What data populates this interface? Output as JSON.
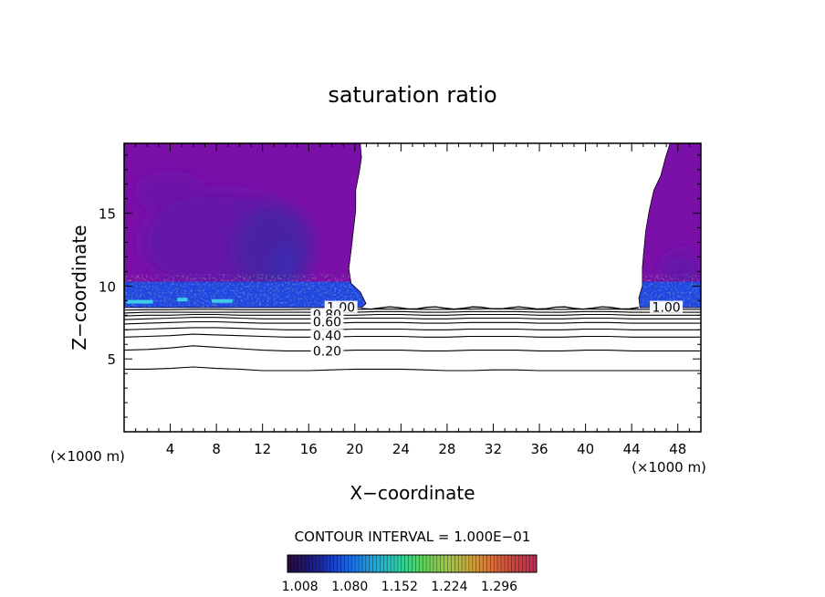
{
  "chart_data": {
    "type": "heatmap",
    "title": "saturation ratio",
    "xlabel": "X−coordinate",
    "ylabel": "Z−coordinate",
    "x_unit_label": "(×1000 m)",
    "y_unit_label": "(×1000 m)",
    "xlim": [
      0,
      50
    ],
    "ylim": [
      0,
      19.8
    ],
    "x_ticks": [
      4,
      8,
      12,
      16,
      20,
      24,
      28,
      32,
      36,
      40,
      44,
      48
    ],
    "y_ticks": [
      5,
      10,
      15
    ],
    "contour_interval_text": "CONTOUR INTERVAL = 1.000E−01",
    "contour_lines": [
      {
        "level": 0.1,
        "label": "",
        "z": [
          4.3,
          4.3,
          4.35,
          4.45,
          4.35,
          4.3,
          4.2,
          4.2,
          4.2,
          4.25,
          4.3,
          4.3,
          4.3,
          4.25,
          4.2,
          4.2,
          4.25,
          4.25,
          4.2,
          4.2,
          4.2,
          4.2,
          4.2,
          4.2,
          4.2,
          4.2
        ]
      },
      {
        "level": 0.2,
        "label": "0.20",
        "z": [
          5.6,
          5.65,
          5.75,
          5.9,
          5.8,
          5.7,
          5.6,
          5.55,
          5.55,
          5.55,
          5.6,
          5.6,
          5.6,
          5.55,
          5.55,
          5.6,
          5.6,
          5.6,
          5.55,
          5.55,
          5.6,
          5.6,
          5.55,
          5.55,
          5.55,
          5.55
        ]
      },
      {
        "level": 0.3,
        "label": "",
        "z": [
          6.5,
          6.55,
          6.6,
          6.7,
          6.65,
          6.6,
          6.55,
          6.5,
          6.5,
          6.5,
          6.55,
          6.55,
          6.55,
          6.5,
          6.5,
          6.55,
          6.55,
          6.55,
          6.5,
          6.5,
          6.55,
          6.55,
          6.5,
          6.5,
          6.5,
          6.5
        ]
      },
      {
        "level": 0.4,
        "label": "0.40",
        "z": [
          7.0,
          7.05,
          7.1,
          7.15,
          7.15,
          7.1,
          7.05,
          7.0,
          7.0,
          7.0,
          7.05,
          7.05,
          7.05,
          7.0,
          7.0,
          7.05,
          7.05,
          7.05,
          7.0,
          7.0,
          7.05,
          7.05,
          7.0,
          7.0,
          7.0,
          7.0
        ]
      },
      {
        "level": 0.5,
        "label": "",
        "z": [
          7.4,
          7.45,
          7.5,
          7.55,
          7.55,
          7.5,
          7.45,
          7.45,
          7.45,
          7.45,
          7.5,
          7.5,
          7.5,
          7.45,
          7.45,
          7.5,
          7.5,
          7.5,
          7.45,
          7.45,
          7.5,
          7.5,
          7.45,
          7.45,
          7.45,
          7.45
        ]
      },
      {
        "level": 0.6,
        "label": "0.60",
        "z": [
          7.7,
          7.75,
          7.8,
          7.85,
          7.85,
          7.8,
          7.75,
          7.75,
          7.75,
          7.75,
          7.8,
          7.8,
          7.8,
          7.75,
          7.75,
          7.8,
          7.8,
          7.8,
          7.75,
          7.75,
          7.8,
          7.8,
          7.75,
          7.75,
          7.75,
          7.75
        ]
      },
      {
        "level": 0.7,
        "label": "",
        "z": [
          7.95,
          8.0,
          8.0,
          8.05,
          8.05,
          8.0,
          8.0,
          8.0,
          8.0,
          8.0,
          8.0,
          8.05,
          8.05,
          8.0,
          8.0,
          8.05,
          8.05,
          8.05,
          8.0,
          8.0,
          8.05,
          8.05,
          8.0,
          8.0,
          8.0,
          8.0
        ]
      },
      {
        "level": 0.8,
        "label": "0.80",
        "z": [
          8.15,
          8.2,
          8.2,
          8.2,
          8.2,
          8.2,
          8.2,
          8.2,
          8.2,
          8.2,
          8.2,
          8.25,
          8.25,
          8.2,
          8.2,
          8.25,
          8.25,
          8.25,
          8.2,
          8.2,
          8.25,
          8.25,
          8.2,
          8.2,
          8.2,
          8.2
        ]
      },
      {
        "level": 0.9,
        "label": "",
        "z": [
          8.35,
          8.38,
          8.38,
          8.4,
          8.4,
          8.38,
          8.38,
          8.38,
          8.4,
          8.4,
          8.4,
          8.42,
          8.42,
          8.4,
          8.4,
          8.42,
          8.45,
          8.42,
          8.4,
          8.4,
          8.42,
          8.42,
          8.4,
          8.4,
          8.4,
          8.4
        ]
      }
    ],
    "contour_x_spacing": 2,
    "inline_labels": [
      {
        "text": "1.00",
        "x": 18.8,
        "z": 8.55
      },
      {
        "text": "0.80",
        "x": 17.6,
        "z": 8.05
      },
      {
        "text": "0.60",
        "x": 17.6,
        "z": 7.55
      },
      {
        "text": "0.40",
        "x": 17.6,
        "z": 6.6
      },
      {
        "text": "0.20",
        "x": 17.6,
        "z": 5.55
      },
      {
        "text": "1.00",
        "x": 47.0,
        "z": 8.55
      }
    ],
    "supersaturated_regions": [
      {
        "name": "left",
        "value_min": 1.008,
        "boundary": [
          [
            0,
            8.5
          ],
          [
            20.6,
            8.5
          ],
          [
            21.0,
            8.8
          ],
          [
            20.5,
            9.6
          ],
          [
            19.7,
            10.2
          ],
          [
            19.5,
            11.2
          ],
          [
            19.7,
            12.4
          ],
          [
            19.9,
            13.8
          ],
          [
            20.1,
            15.2
          ],
          [
            20.1,
            16.6
          ],
          [
            20.4,
            17.8
          ],
          [
            20.6,
            18.8
          ],
          [
            20.5,
            19.8
          ],
          [
            0,
            19.8
          ]
        ]
      },
      {
        "name": "right",
        "value_min": 1.008,
        "boundary": [
          [
            44.7,
            8.5
          ],
          [
            50,
            8.5
          ],
          [
            50,
            19.8
          ],
          [
            47.3,
            19.8
          ],
          [
            46.9,
            18.8
          ],
          [
            46.5,
            17.6
          ],
          [
            45.9,
            16.6
          ],
          [
            45.5,
            15.2
          ],
          [
            45.2,
            13.8
          ],
          [
            45.0,
            12.2
          ],
          [
            44.9,
            11.2
          ],
          [
            44.9,
            10.0
          ],
          [
            44.6,
            9.2
          ]
        ]
      }
    ],
    "colorbar": {
      "min": 0.99,
      "max": 1.35,
      "tick_labels": [
        "1.008",
        "1.080",
        "1.152",
        "1.224",
        "1.296"
      ],
      "tick_values": [
        1.008,
        1.08,
        1.152,
        1.224,
        1.296
      ],
      "colors": [
        "#2a0a3d",
        "#1b1880",
        "#1a3ec8",
        "#1d78e6",
        "#1db0d8",
        "#2fcf9c",
        "#5fd15a",
        "#9ac846",
        "#c8a83c",
        "#d8703a",
        "#cf4238",
        "#c02a5a"
      ]
    },
    "fill_colors": {
      "background_purple": "#7b10a8",
      "mid_purple": "#6414a8",
      "deep_purple": "#4a22a2",
      "core_purple": "#3a2ab0",
      "blue_band": "#1f48e0",
      "cyan_spot": "#3ecbe8"
    }
  }
}
